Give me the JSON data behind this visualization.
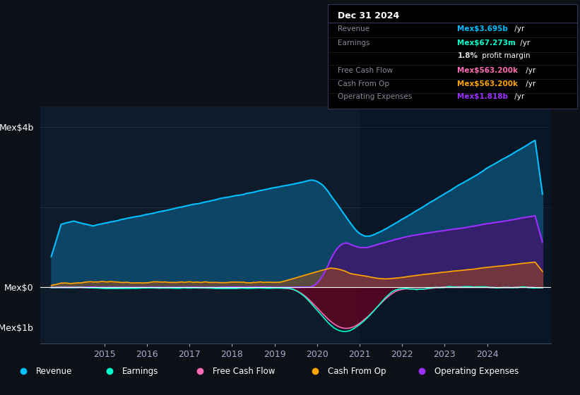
{
  "bg_color": "#0d1117",
  "plot_bg_color": "#0d1b2a",
  "ylabel_top": "Mex$4b",
  "ylabel_mid": "Mex$0",
  "ylabel_bot": "-Mex$1b",
  "ylim": [
    -1400000000.0,
    4500000000.0
  ],
  "xlim_start": 2013.5,
  "xlim_end": 2025.5,
  "xtick_years": [
    2015,
    2016,
    2017,
    2018,
    2019,
    2020,
    2021,
    2022,
    2023,
    2024
  ],
  "revenue_color": "#00bfff",
  "revenue_fill": "#0d4a6e",
  "earnings_color": "#00ffcc",
  "fcf_color": "#ff69b4",
  "cashfromop_color": "#ffa500",
  "opex_color": "#9b30ff",
  "opex_fill": "#3d1a6e",
  "legend_items": [
    "Revenue",
    "Earnings",
    "Free Cash Flow",
    "Cash From Op",
    "Operating Expenses"
  ],
  "legend_colors": [
    "#00bfff",
    "#00ffcc",
    "#ff69b4",
    "#ffa500",
    "#9b30ff"
  ],
  "box_title": "Dec 31 2024",
  "box_rows": [
    [
      "Revenue",
      "Mex$3.695b",
      " /yr",
      "#00bfff"
    ],
    [
      "Earnings",
      "Mex$67.273m",
      " /yr",
      "#00ffcc"
    ],
    [
      "",
      "1.8%",
      " profit margin",
      "#dddddd"
    ],
    [
      "Free Cash Flow",
      "Mex$563.200k",
      " /yr",
      "#ff69b4"
    ],
    [
      "Cash From Op",
      "Mex$563.200k",
      " /yr",
      "#ffa500"
    ],
    [
      "Operating Expenses",
      "Mex$1.818b",
      " /yr",
      "#9b30ff"
    ]
  ]
}
